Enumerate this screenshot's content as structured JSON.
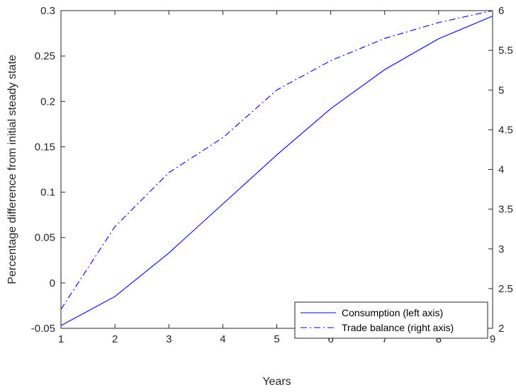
{
  "chart_data": {
    "type": "line",
    "xlabel": "Years",
    "ylabel": "Percentage difference from initial steady state",
    "xlim": [
      1,
      9
    ],
    "x_ticks": [
      "1",
      "2",
      "3",
      "4",
      "5",
      "6",
      "7",
      "8",
      "9"
    ],
    "ylim_left": [
      -0.05,
      0.3
    ],
    "y_ticks_left": [
      "-0.05",
      "0",
      "0.05",
      "0.1",
      "0.15",
      "0.2",
      "0.25",
      "0.3"
    ],
    "ylim_right": [
      2,
      6
    ],
    "y_ticks_right": [
      "2",
      "2.5",
      "3",
      "3.5",
      "4",
      "4.5",
      "5",
      "5.5",
      "6"
    ],
    "grid": false,
    "legend_position": "bottom-right",
    "x": [
      1,
      2,
      3,
      4,
      5,
      6,
      7,
      8,
      9
    ],
    "series": [
      {
        "name": "Consumption (left axis)",
        "axis": "left",
        "line_style": "solid",
        "color": "#0000ff",
        "values": [
          -0.047,
          -0.015,
          0.033,
          0.087,
          0.141,
          0.192,
          0.235,
          0.269,
          0.294
        ]
      },
      {
        "name": "Trade balance (right axis)",
        "axis": "right",
        "line_style": "dash-dot",
        "color": "#0000ff",
        "values": [
          2.24,
          3.28,
          3.96,
          4.4,
          5.0,
          5.37,
          5.65,
          5.85,
          6.0
        ]
      }
    ]
  }
}
